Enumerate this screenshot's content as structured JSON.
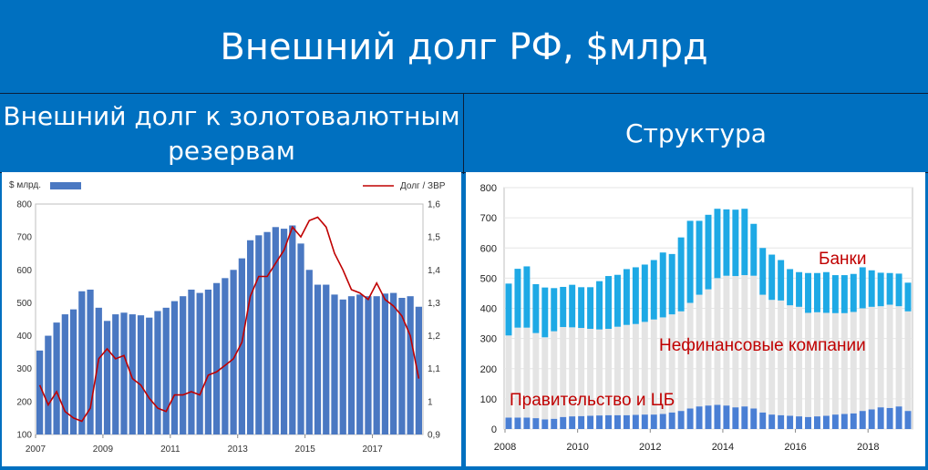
{
  "slide": {
    "title": "Внешний долг РФ, $млрд",
    "left_heading": "Внешний долг к золотовалютным резервам",
    "right_heading": "Структура"
  },
  "colors": {
    "bar": "#4a78c2",
    "line": "#c00000",
    "bank": "#1ea9e5",
    "nonfin": "#e4e4e4",
    "gov": "#4a7fd4",
    "banner": "#0070c0"
  },
  "chart_data": [
    {
      "type": "bar",
      "ylabel": "$ млрд.",
      "ylim": [
        100,
        800
      ],
      "yticks": [
        "100",
        "200",
        "300",
        "400",
        "500",
        "600",
        "700",
        "800"
      ],
      "y2lim": [
        0.9,
        1.6
      ],
      "y2ticks": [
        "0,9",
        "1",
        "1,1",
        "1,2",
        "1,3",
        "1,4",
        "1,5",
        "1,6"
      ],
      "xticks": [
        "2007",
        "2009",
        "2011",
        "2013",
        "2015",
        "2017"
      ],
      "x_start": 2007,
      "legend_placement": "top",
      "series": [
        {
          "kind": "bar",
          "values": [
            355,
            400,
            440,
            465,
            480,
            535,
            540,
            485,
            445,
            465,
            470,
            465,
            462,
            455,
            475,
            485,
            505,
            520,
            540,
            530,
            540,
            560,
            575,
            600,
            635,
            690,
            705,
            715,
            730,
            725,
            735,
            680,
            600,
            555,
            555,
            525,
            510,
            520,
            525,
            520,
            520,
            528,
            530,
            515,
            520,
            488
          ]
        },
        {
          "name": "Долг / ЗВР",
          "kind": "line",
          "values": [
            1.05,
            0.99,
            1.03,
            0.97,
            0.95,
            0.94,
            0.98,
            1.13,
            1.16,
            1.13,
            1.14,
            1.07,
            1.05,
            1.01,
            0.98,
            0.97,
            1.02,
            1.02,
            1.03,
            1.02,
            1.08,
            1.09,
            1.11,
            1.13,
            1.18,
            1.32,
            1.38,
            1.38,
            1.42,
            1.46,
            1.53,
            1.5,
            1.55,
            1.56,
            1.53,
            1.45,
            1.4,
            1.34,
            1.33,
            1.31,
            1.36,
            1.31,
            1.29,
            1.26,
            1.2,
            1.07
          ]
        }
      ]
    },
    {
      "type": "bar",
      "stacked": true,
      "ylim": [
        0,
        800
      ],
      "yticks": [
        "0",
        "100",
        "200",
        "300",
        "400",
        "500",
        "600",
        "700",
        "800"
      ],
      "xticks": [
        "2008",
        "2010",
        "2012",
        "2014",
        "2016",
        "2018"
      ],
      "x_start": 2008,
      "annotations": [
        "Банки",
        "Нефинансовые компании",
        "Правительство и ЦБ"
      ],
      "series": [
        {
          "name": "Правительство и ЦБ",
          "values": [
            38,
            38,
            38,
            36,
            32,
            34,
            40,
            42,
            43,
            44,
            45,
            46,
            46,
            46,
            47,
            48,
            48,
            50,
            55,
            60,
            68,
            75,
            78,
            80,
            78,
            72,
            75,
            68,
            55,
            48,
            46,
            44,
            42,
            40,
            42,
            44,
            48,
            50,
            52,
            60,
            65,
            72,
            70,
            75,
            60
          ]
        },
        {
          "name": "Нефинансовые компании",
          "values": [
            272,
            298,
            298,
            282,
            272,
            290,
            298,
            295,
            292,
            288,
            285,
            286,
            293,
            299,
            301,
            307,
            315,
            320,
            325,
            330,
            350,
            370,
            385,
            420,
            430,
            435,
            435,
            440,
            390,
            380,
            380,
            366,
            363,
            345,
            345,
            341,
            336,
            334,
            336,
            340,
            340,
            335,
            342,
            332,
            330
          ]
        },
        {
          "name": "Банки",
          "values": [
            172,
            195,
            203,
            162,
            165,
            143,
            133,
            141,
            135,
            138,
            160,
            175,
            172,
            185,
            188,
            190,
            197,
            215,
            200,
            245,
            272,
            245,
            247,
            230,
            220,
            220,
            220,
            172,
            155,
            150,
            134,
            120,
            115,
            132,
            130,
            135,
            126,
            126,
            126,
            136,
            121,
            111,
            105,
            108,
            95
          ]
        }
      ]
    }
  ]
}
